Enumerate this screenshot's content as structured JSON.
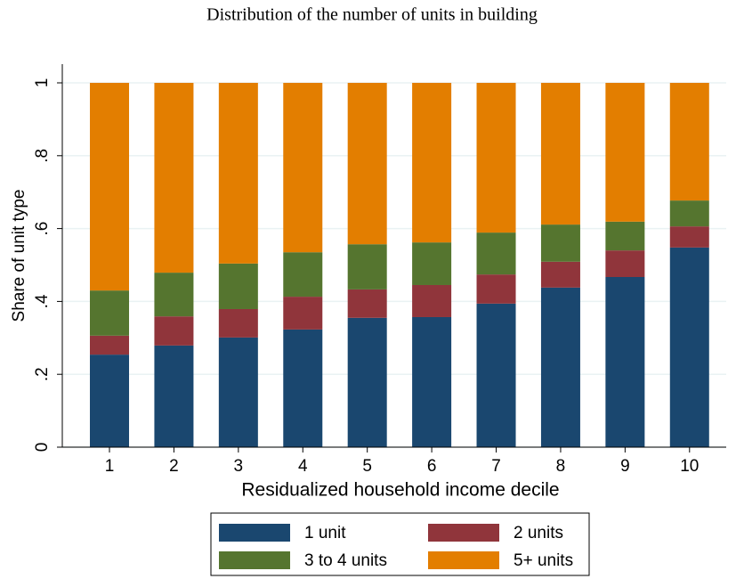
{
  "chart_data": {
    "type": "stacked_bar",
    "title": "Distribution of the number of units in building",
    "x_label": "Residualized household income decile",
    "y_label": "Share of unit type",
    "categories": [
      "1",
      "2",
      "3",
      "4",
      "5",
      "6",
      "7",
      "8",
      "9",
      "10"
    ],
    "series": [
      {
        "name": "1 unit",
        "color": "#1a476f",
        "values": [
          0.254,
          0.279,
          0.301,
          0.323,
          0.355,
          0.357,
          0.394,
          0.438,
          0.467,
          0.548
        ]
      },
      {
        "name": "2 units",
        "color": "#90353b",
        "values": [
          0.052,
          0.08,
          0.078,
          0.09,
          0.078,
          0.088,
          0.08,
          0.071,
          0.073,
          0.058
        ]
      },
      {
        "name": "3 to 4 units",
        "color": "#55752f",
        "values": [
          0.124,
          0.12,
          0.125,
          0.122,
          0.124,
          0.117,
          0.115,
          0.102,
          0.079,
          0.071
        ]
      },
      {
        "name": "5+ units",
        "color": "#e37e00",
        "values": [
          0.57,
          0.521,
          0.496,
          0.465,
          0.443,
          0.438,
          0.411,
          0.389,
          0.381,
          0.323
        ]
      }
    ],
    "ylim": [
      0,
      1
    ],
    "yticks": [
      0,
      {
        "value": 0.2,
        "label": ".2"
      },
      {
        "value": 0.4,
        "label": ".4"
      },
      {
        "value": 0.6,
        "label": ".6"
      },
      {
        "value": 0.8,
        "label": ".8"
      },
      1
    ],
    "grid": true
  }
}
